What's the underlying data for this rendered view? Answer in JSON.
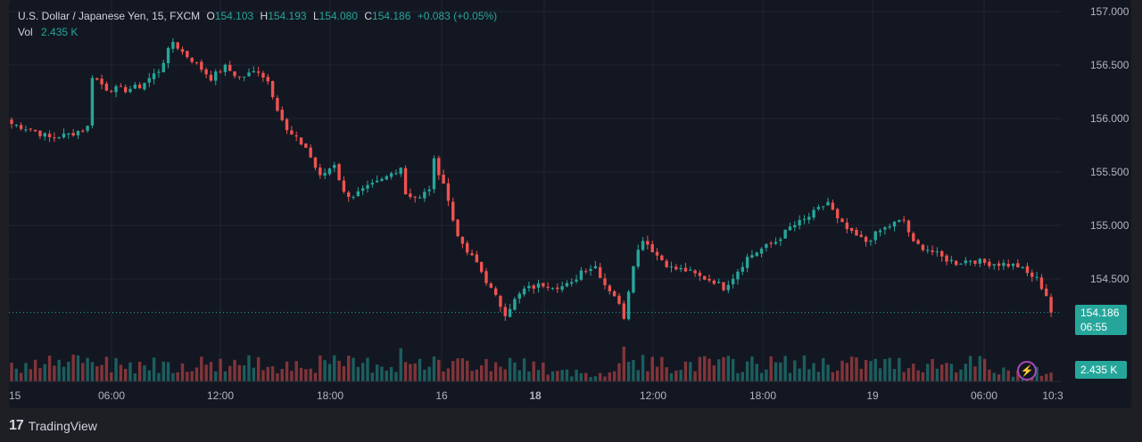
{
  "legend": {
    "symbol": "U.S. Dollar / Japanese Yen, 15, FXCM",
    "o_label": "O",
    "o_value": "154.103",
    "h_label": "H",
    "h_value": "154.193",
    "l_label": "L",
    "l_value": "154.080",
    "c_label": "C",
    "c_value": "154.186",
    "change": "+0.083 (+0.05%)",
    "vol_label": "Vol",
    "vol_value": "2.435 K"
  },
  "price_tag": {
    "price": "154.186",
    "countdown": "06:55"
  },
  "volume_tag": "2.435 K",
  "footer": {
    "brand": "TradingView",
    "logo_icon": "tradingview-logo-icon"
  },
  "colors": {
    "up": "#26a69a",
    "down": "#ef5350",
    "background": "#131722",
    "grid": "#222631",
    "accent": "#ab47bc"
  },
  "chart_data": {
    "type": "candlestick",
    "y_ticks": [
      "157.000",
      "156.500",
      "156.000",
      "155.500",
      "155.000",
      "154.500"
    ],
    "ylim": [
      154.0,
      157.1
    ],
    "x_ticks": [
      "15",
      "06:00",
      "12:00",
      "18:00",
      "16",
      "18",
      "12:00",
      "18:00",
      "19",
      "06:00",
      "10:3"
    ],
    "last_price": 154.186,
    "path": [
      [
        0,
        155.95
      ],
      [
        4,
        155.9
      ],
      [
        8,
        155.82
      ],
      [
        12,
        155.85
      ],
      [
        15,
        155.9
      ],
      [
        16,
        155.92
      ],
      [
        17,
        156.4
      ],
      [
        20,
        156.28
      ],
      [
        24,
        156.27
      ],
      [
        27,
        156.3
      ],
      [
        31,
        156.45
      ],
      [
        34,
        156.72
      ],
      [
        36,
        156.62
      ],
      [
        38,
        156.55
      ],
      [
        42,
        156.38
      ],
      [
        45,
        156.48
      ],
      [
        48,
        156.38
      ],
      [
        52,
        156.45
      ],
      [
        54,
        156.35
      ],
      [
        56,
        156.1
      ],
      [
        58,
        155.88
      ],
      [
        62,
        155.73
      ],
      [
        65,
        155.45
      ],
      [
        68,
        155.58
      ],
      [
        70,
        155.3
      ],
      [
        72,
        155.28
      ],
      [
        75,
        155.35
      ],
      [
        78,
        155.42
      ],
      [
        82,
        155.55
      ],
      [
        83,
        155.3
      ],
      [
        86,
        155.25
      ],
      [
        88,
        155.35
      ],
      [
        89,
        155.6
      ],
      [
        91,
        155.4
      ],
      [
        93,
        155.05
      ],
      [
        95,
        154.8
      ],
      [
        98,
        154.65
      ],
      [
        101,
        154.4
      ],
      [
        104,
        154.18
      ],
      [
        106,
        154.3
      ],
      [
        108,
        154.4
      ],
      [
        112,
        154.45
      ],
      [
        116,
        154.43
      ],
      [
        118,
        154.45
      ],
      [
        120,
        154.58
      ],
      [
        123,
        154.62
      ],
      [
        125,
        154.45
      ],
      [
        127,
        154.35
      ],
      [
        129,
        154.15
      ],
      [
        131,
        154.65
      ],
      [
        133,
        154.88
      ],
      [
        136,
        154.72
      ],
      [
        139,
        154.6
      ],
      [
        142,
        154.58
      ],
      [
        145,
        154.52
      ],
      [
        148,
        154.48
      ],
      [
        150,
        154.42
      ],
      [
        152,
        154.52
      ],
      [
        155,
        154.7
      ],
      [
        158,
        154.78
      ],
      [
        161,
        154.85
      ],
      [
        164,
        154.98
      ],
      [
        167,
        155.05
      ],
      [
        170,
        155.15
      ],
      [
        172,
        155.22
      ],
      [
        174,
        155.05
      ],
      [
        177,
        154.92
      ],
      [
        180,
        154.85
      ],
      [
        183,
        154.95
      ],
      [
        186,
        155.02
      ],
      [
        188,
        155.05
      ],
      [
        190,
        154.83
      ],
      [
        193,
        154.78
      ],
      [
        196,
        154.7
      ],
      [
        199,
        154.65
      ],
      [
        202,
        154.68
      ],
      [
        205,
        154.65
      ],
      [
        209,
        154.64
      ],
      [
        212,
        154.62
      ],
      [
        214,
        154.55
      ],
      [
        216,
        154.5
      ],
      [
        218,
        154.35
      ],
      [
        219,
        154.186
      ]
    ],
    "volume_spikes": [
      [
        13,
        0.5
      ],
      [
        82,
        0.62
      ],
      [
        86,
        0.42
      ],
      [
        127,
        0.38
      ],
      [
        129,
        0.65
      ],
      [
        131,
        0.4
      ]
    ]
  }
}
